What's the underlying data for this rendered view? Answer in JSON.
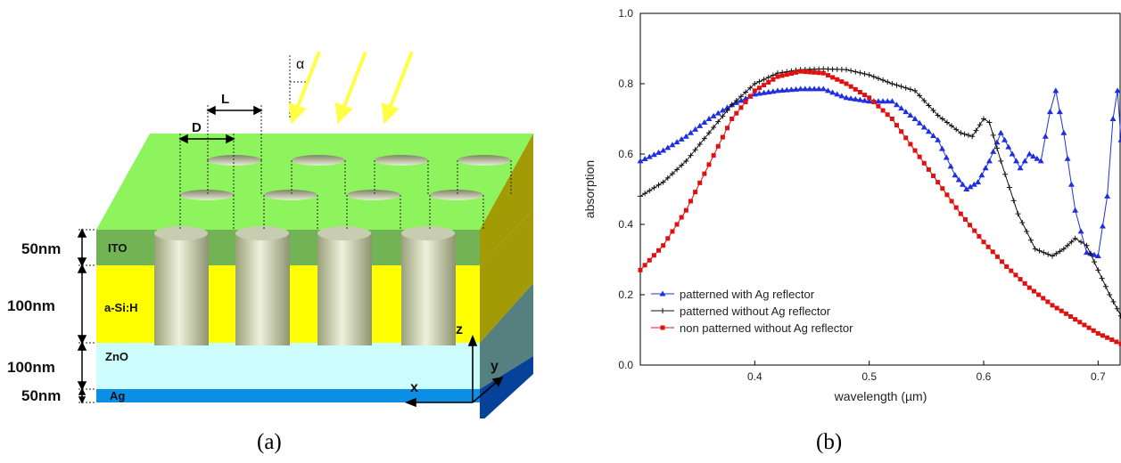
{
  "panel_a": {
    "caption": "(a)",
    "layers": [
      {
        "name": "ITO",
        "thickness": "50nm",
        "color": "#72b455"
      },
      {
        "name": "a-Si:H",
        "thickness": "100nm",
        "color": "#ffff00"
      },
      {
        "name": "ZnO",
        "thickness": "100nm",
        "color": "#ccfcfc"
      },
      {
        "name": "Ag",
        "thickness": "50nm",
        "color": "#0a8ee6"
      }
    ],
    "top_surface_color": "#8ef45e",
    "dim_labels": {
      "L": "L",
      "D": "D",
      "alpha": "α"
    },
    "axis_labels": {
      "x": "x",
      "y": "y",
      "z": "z"
    },
    "light_color": "#ffff44"
  },
  "panel_b": {
    "caption": "(b)",
    "chart_data": {
      "type": "line",
      "xlabel": "wavelength (µm)",
      "ylabel": "absorption",
      "xlim": [
        0.3,
        0.72
      ],
      "ylim": [
        0.0,
        1.0
      ],
      "xticks": [
        "0.4",
        "0.5",
        "0.6",
        "0.7"
      ],
      "yticks": [
        "0.0",
        "0.2",
        "0.4",
        "0.6",
        "0.8",
        "1.0"
      ],
      "legend_position": "bottom-left",
      "series": [
        {
          "name": "patterned with Ag reflector",
          "color": "#1f2fe0",
          "marker": "triangle",
          "points": [
            [
              0.3,
              0.58
            ],
            [
              0.32,
              0.61
            ],
            [
              0.34,
              0.65
            ],
            [
              0.36,
              0.7
            ],
            [
              0.38,
              0.74
            ],
            [
              0.4,
              0.77
            ],
            [
              0.42,
              0.78
            ],
            [
              0.44,
              0.785
            ],
            [
              0.46,
              0.785
            ],
            [
              0.48,
              0.76
            ],
            [
              0.5,
              0.75
            ],
            [
              0.52,
              0.75
            ],
            [
              0.54,
              0.7
            ],
            [
              0.56,
              0.64
            ],
            [
              0.575,
              0.54
            ],
            [
              0.585,
              0.5
            ],
            [
              0.595,
              0.52
            ],
            [
              0.605,
              0.58
            ],
            [
              0.615,
              0.66
            ],
            [
              0.625,
              0.6
            ],
            [
              0.632,
              0.56
            ],
            [
              0.64,
              0.6
            ],
            [
              0.65,
              0.58
            ],
            [
              0.658,
              0.72
            ],
            [
              0.663,
              0.78
            ],
            [
              0.67,
              0.66
            ],
            [
              0.68,
              0.44
            ],
            [
              0.69,
              0.32
            ],
            [
              0.7,
              0.31
            ],
            [
              0.708,
              0.48
            ],
            [
              0.713,
              0.7
            ],
            [
              0.717,
              0.78
            ],
            [
              0.72,
              0.64
            ]
          ]
        },
        {
          "name": "patterned without Ag reflector",
          "color": "#111111",
          "marker": "cross",
          "points": [
            [
              0.3,
              0.48
            ],
            [
              0.32,
              0.52
            ],
            [
              0.34,
              0.58
            ],
            [
              0.36,
              0.66
            ],
            [
              0.38,
              0.74
            ],
            [
              0.4,
              0.8
            ],
            [
              0.42,
              0.83
            ],
            [
              0.44,
              0.84
            ],
            [
              0.46,
              0.842
            ],
            [
              0.48,
              0.84
            ],
            [
              0.5,
              0.825
            ],
            [
              0.52,
              0.8
            ],
            [
              0.54,
              0.78
            ],
            [
              0.56,
              0.71
            ],
            [
              0.58,
              0.66
            ],
            [
              0.59,
              0.65
            ],
            [
              0.6,
              0.7
            ],
            [
              0.605,
              0.69
            ],
            [
              0.615,
              0.58
            ],
            [
              0.63,
              0.43
            ],
            [
              0.645,
              0.33
            ],
            [
              0.66,
              0.31
            ],
            [
              0.67,
              0.33
            ],
            [
              0.68,
              0.36
            ],
            [
              0.69,
              0.34
            ],
            [
              0.7,
              0.27
            ],
            [
              0.71,
              0.2
            ],
            [
              0.72,
              0.14
            ]
          ]
        },
        {
          "name": "non patterned without Ag reflector",
          "color": "#e01010",
          "marker": "square",
          "points": [
            [
              0.3,
              0.27
            ],
            [
              0.32,
              0.34
            ],
            [
              0.34,
              0.44
            ],
            [
              0.36,
              0.57
            ],
            [
              0.38,
              0.7
            ],
            [
              0.4,
              0.78
            ],
            [
              0.42,
              0.82
            ],
            [
              0.44,
              0.835
            ],
            [
              0.46,
              0.83
            ],
            [
              0.48,
              0.8
            ],
            [
              0.5,
              0.76
            ],
            [
              0.52,
              0.7
            ],
            [
              0.54,
              0.61
            ],
            [
              0.56,
              0.52
            ],
            [
              0.58,
              0.43
            ],
            [
              0.6,
              0.35
            ],
            [
              0.62,
              0.28
            ],
            [
              0.64,
              0.22
            ],
            [
              0.66,
              0.17
            ],
            [
              0.68,
              0.13
            ],
            [
              0.7,
              0.09
            ],
            [
              0.72,
              0.06
            ]
          ]
        }
      ]
    }
  }
}
